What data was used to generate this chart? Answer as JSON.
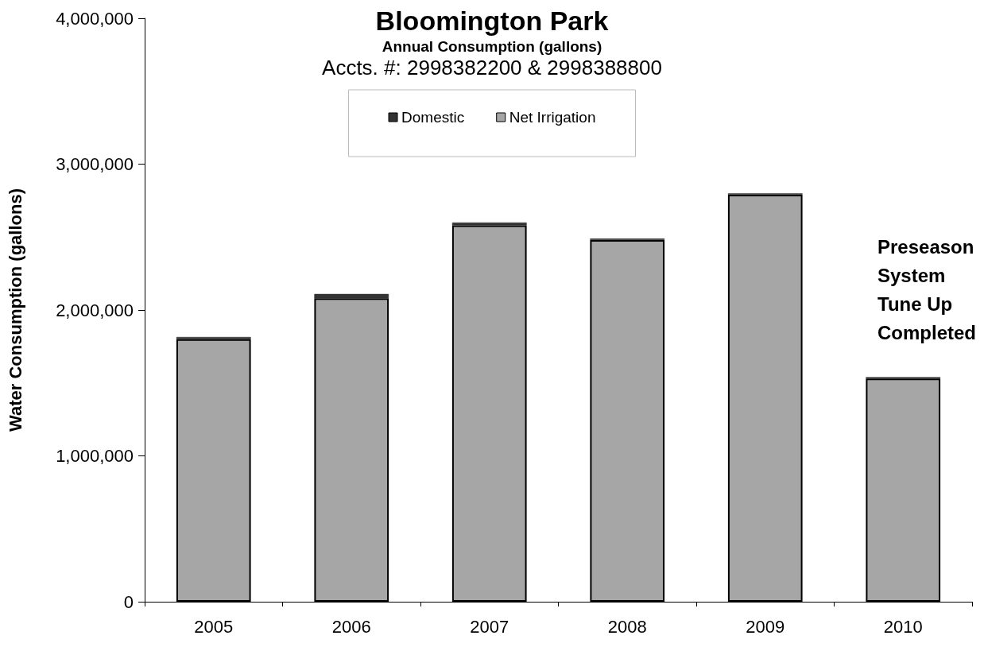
{
  "chart_data": {
    "type": "bar",
    "title": "Bloomington Park",
    "subtitle": "Annual Consumption (gallons)",
    "annotations": [
      "Accts. #: 2998382200 & 2998388800",
      "Preseason\nSystem\nTune Up\nCompleted"
    ],
    "ylabel": "Water Consumption (gallons)",
    "categories": [
      "2005",
      "2006",
      "2007",
      "2008",
      "2009",
      "2010"
    ],
    "stacked": true,
    "series": [
      {
        "name": "Net Irrigation",
        "color": "#a6a6a6",
        "values": [
          1800000,
          2080000,
          2580000,
          2480000,
          2790000,
          1530000
        ]
      },
      {
        "name": "Domestic",
        "color": "#333333",
        "values": [
          15000,
          30000,
          20000,
          10000,
          10000,
          10000
        ]
      }
    ],
    "ylim": [
      0,
      4000000
    ],
    "yticks": [
      0,
      {
        "value": 1000000,
        "label": "1,000,000"
      },
      {
        "value": 2000000,
        "label": "2,000,000"
      },
      {
        "value": 3000000,
        "label": "3,000,000"
      },
      {
        "value": 4000000,
        "label": "4,000,000"
      }
    ],
    "grid": false,
    "legend": "top"
  }
}
